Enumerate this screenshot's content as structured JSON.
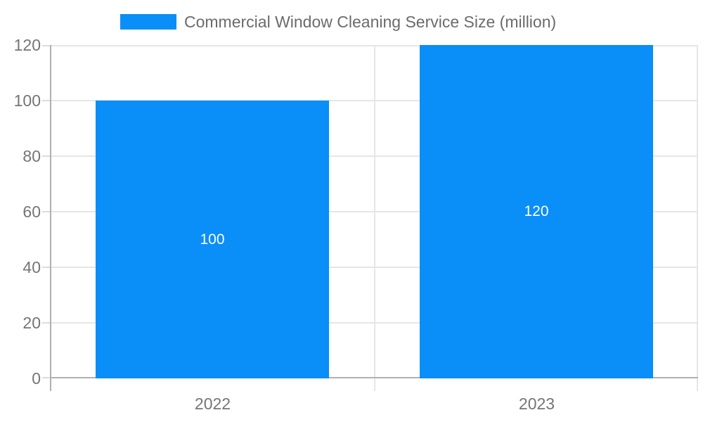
{
  "legend": {
    "title": "Commercial Window Cleaning Service Size (million)"
  },
  "colors": {
    "bar": "#0a8ef8",
    "gridline": "#e6e6e6",
    "tick": "#dcdcdc",
    "axis_line": "#b0b0b0",
    "axis_label": "#757575",
    "title_text": "#6b6b6b",
    "bar_label": "#ffffff",
    "background": "#ffffff"
  },
  "chart_data": {
    "type": "bar",
    "title": "Commercial Window Cleaning Service Size (million)",
    "categories": [
      "2022",
      "2023"
    ],
    "values": [
      100,
      120
    ],
    "series": [
      {
        "name": "Commercial Window Cleaning Service Size (million)",
        "values": [
          100,
          120
        ]
      }
    ],
    "xlabel": "",
    "ylabel": "",
    "ylim": [
      0,
      120
    ],
    "yticks": [
      0,
      20,
      40,
      60,
      80,
      100,
      120
    ],
    "grid": true,
    "legend_position": "top",
    "bar_labels_inside": true
  }
}
